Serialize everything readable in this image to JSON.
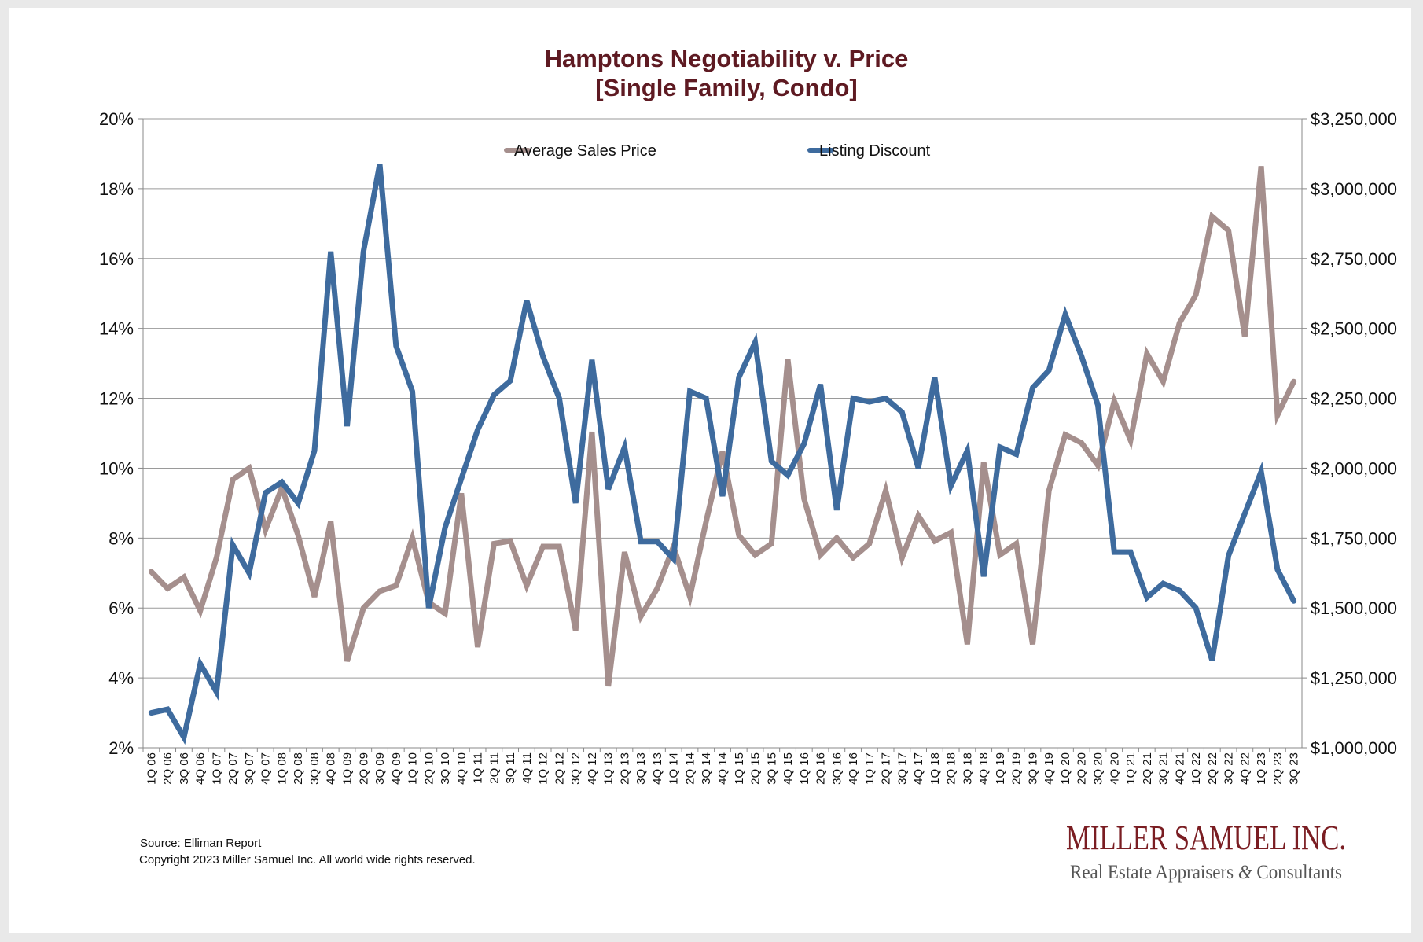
{
  "chart_data": {
    "type": "line",
    "title": "Hamptons Negotiability v. Price",
    "subtitle": "[Single Family, Condo]",
    "xlabel": "",
    "ylabel": "",
    "y_left": {
      "range": [
        2,
        20
      ],
      "ticks": [
        2,
        4,
        6,
        8,
        10,
        12,
        14,
        16,
        18,
        20
      ],
      "tick_labels": [
        "2%",
        "4%",
        "6%",
        "8%",
        "10%",
        "12%",
        "14%",
        "16%",
        "18%",
        "20%"
      ]
    },
    "y_right": {
      "range": [
        1000000,
        3250000
      ],
      "ticks": [
        1000000,
        1250000,
        1500000,
        1750000,
        2000000,
        2250000,
        2500000,
        2750000,
        3000000,
        3250000
      ],
      "tick_labels": [
        "$1,000,000",
        "$1,250,000",
        "$1,500,000",
        "$1,750,000",
        "$2,000,000",
        "$2,250,000",
        "$2,500,000",
        "$2,750,000",
        "$3,000,000",
        "$3,250,000"
      ]
    },
    "grid": true,
    "legend_position": "top",
    "categories": [
      "1Q 06",
      "2Q 06",
      "3Q 06",
      "4Q 06",
      "1Q 07",
      "2Q 07",
      "3Q 07",
      "4Q 07",
      "1Q 08",
      "2Q 08",
      "3Q 08",
      "4Q 08",
      "1Q 09",
      "2Q 09",
      "3Q 09",
      "4Q 09",
      "1Q 10",
      "2Q 10",
      "3Q 10",
      "4Q 10",
      "1Q 11",
      "2Q 11",
      "3Q 11",
      "4Q 11",
      "1Q 12",
      "2Q 12",
      "3Q 12",
      "4Q 12",
      "1Q 13",
      "2Q 13",
      "3Q 13",
      "4Q 13",
      "1Q 14",
      "2Q 14",
      "3Q 14",
      "4Q 14",
      "1Q 15",
      "2Q 15",
      "3Q 15",
      "4Q 15",
      "1Q 16",
      "2Q 16",
      "3Q 16",
      "4Q 16",
      "1Q 17",
      "2Q 17",
      "3Q 17",
      "4Q 17",
      "1Q 18",
      "2Q 18",
      "3Q 18",
      "4Q 18",
      "1Q 19",
      "2Q 19",
      "3Q 19",
      "4Q 19",
      "1Q 20",
      "2Q 20",
      "3Q 20",
      "4Q 20",
      "1Q 21",
      "2Q 21",
      "3Q 21",
      "4Q 21",
      "1Q 22",
      "2Q 22",
      "3Q 22",
      "4Q 22",
      "1Q 23",
      "2Q 23",
      "3Q 23"
    ],
    "series": [
      {
        "name": "Average Sales Price",
        "axis": "right",
        "color": "#a58f8d",
        "values": [
          1630000,
          1570000,
          1610000,
          1490000,
          1680000,
          1960000,
          2000000,
          1780000,
          1930000,
          1760000,
          1540000,
          1810000,
          1310000,
          1500000,
          1560000,
          1580000,
          1750000,
          1520000,
          1480000,
          1910000,
          1360000,
          1730000,
          1740000,
          1580000,
          1720000,
          1720000,
          1420000,
          2130000,
          1220000,
          1700000,
          1470000,
          1570000,
          1720000,
          1540000,
          1810000,
          2060000,
          1760000,
          1690000,
          1730000,
          2390000,
          1890000,
          1690000,
          1750000,
          1680000,
          1730000,
          1920000,
          1680000,
          1830000,
          1740000,
          1770000,
          1370000,
          2020000,
          1690000,
          1730000,
          1370000,
          1920000,
          2120000,
          2090000,
          2010000,
          2240000,
          2100000,
          2410000,
          2310000,
          2520000,
          2620000,
          2900000,
          2850000,
          2470000,
          3080000,
          2190000,
          2310000
        ]
      },
      {
        "name": "Listing Discount",
        "axis": "left",
        "color": "#3e6b9e",
        "values": [
          3.0,
          3.1,
          2.3,
          4.4,
          3.6,
          7.8,
          7.0,
          9.3,
          9.6,
          9.0,
          10.5,
          16.2,
          11.2,
          16.2,
          18.7,
          13.5,
          12.2,
          6.0,
          8.3,
          9.7,
          11.1,
          12.1,
          12.5,
          14.8,
          13.2,
          12.0,
          9.0,
          13.1,
          9.4,
          10.6,
          7.9,
          7.9,
          7.4,
          12.2,
          12.0,
          9.2,
          12.6,
          13.6,
          10.2,
          9.8,
          10.7,
          12.4,
          8.8,
          12.0,
          11.9,
          12.0,
          11.6,
          10.0,
          12.6,
          9.5,
          10.5,
          6.9,
          10.6,
          10.4,
          12.3,
          12.8,
          14.4,
          13.2,
          11.8,
          7.6,
          7.6,
          6.3,
          6.7,
          6.5,
          6.0,
          4.5,
          7.5,
          8.7,
          9.9,
          7.1,
          6.2
        ]
      }
    ]
  },
  "footer": {
    "source": "Source: Elliman Report",
    "copyright": "Copyright 2023 Miller Samuel Inc.  All world wide rights reserved."
  },
  "logo": {
    "name": "MILLER SAMUEL INC.",
    "tagline_pre": "Real Estate Appraisers ",
    "tagline_amp": "&",
    "tagline_post": " Consultants"
  }
}
